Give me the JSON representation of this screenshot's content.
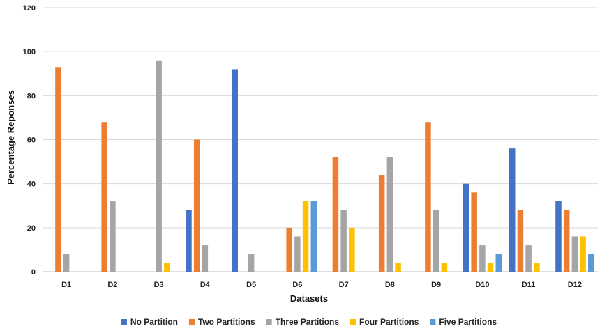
{
  "chart_data": {
    "type": "bar",
    "title": "",
    "xlabel": "Datasets",
    "ylabel": "Percentage Reponses",
    "ylim": [
      0,
      120
    ],
    "yticks": [
      0,
      20,
      40,
      60,
      80,
      100,
      120
    ],
    "grid": "horizontal",
    "legend_position": "bottom",
    "categories": [
      "D1",
      "D2",
      "D3",
      "D4",
      "D5",
      "D6",
      "D7",
      "D8",
      "D9",
      "D10",
      "D11",
      "D12"
    ],
    "series": [
      {
        "name": "No Partition",
        "color": "#4472C4",
        "values": [
          0,
          0,
          0,
          28,
          92,
          0,
          0,
          0,
          0,
          40,
          56,
          32
        ]
      },
      {
        "name": "Two Partitions",
        "color": "#ED7D31",
        "values": [
          93,
          68,
          0,
          60,
          0,
          20,
          52,
          44,
          68,
          36,
          28,
          28
        ]
      },
      {
        "name": "Three Partitions",
        "color": "#A5A5A5",
        "values": [
          8,
          32,
          96,
          12,
          8,
          16,
          28,
          52,
          28,
          12,
          12,
          16
        ]
      },
      {
        "name": "Four  Partitions",
        "color": "#FFC000",
        "values": [
          0,
          0,
          4,
          0,
          0,
          32,
          20,
          4,
          4,
          4,
          4,
          16
        ]
      },
      {
        "name": "Five  Partitions",
        "color": "#5B9BD5",
        "values": [
          0,
          0,
          0,
          0,
          0,
          32,
          0,
          0,
          0,
          8,
          0,
          8
        ]
      }
    ]
  }
}
